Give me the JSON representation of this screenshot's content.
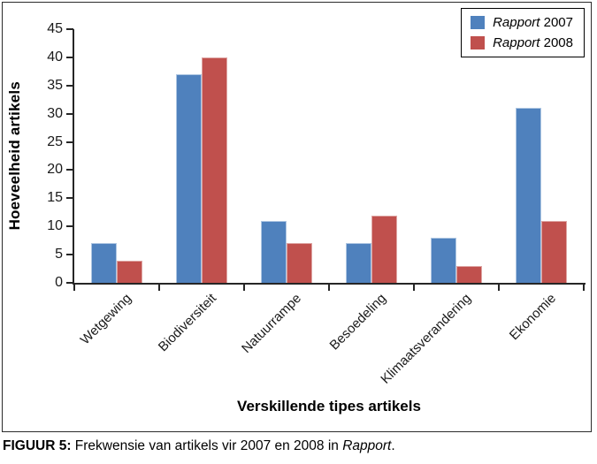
{
  "chart_data": {
    "type": "bar",
    "categories": [
      "Wetgewing",
      "Biodiversiteit",
      "Natuurrampe",
      "Besoedeling",
      "Klimaatsverandering",
      "Ekonomie"
    ],
    "series": [
      {
        "name": "Rapport 2007",
        "name_parts": [
          {
            "text": "Rapport",
            "italic": true
          },
          {
            "text": " 2007",
            "italic": false
          }
        ],
        "color": "#4F81BD",
        "values": [
          7,
          37,
          11,
          7,
          8,
          31
        ]
      },
      {
        "name": "Rapport 2008",
        "name_parts": [
          {
            "text": "Rapport",
            "italic": true
          },
          {
            "text": " 2008",
            "italic": false
          }
        ],
        "color": "#C0504D",
        "values": [
          4,
          40,
          7,
          12,
          3,
          11
        ]
      }
    ],
    "title": "",
    "xlabel": "Verskillende tipes artikels",
    "ylabel": "Hoeveelheid artikels",
    "ylim": [
      0,
      45
    ],
    "ytick_step": 5,
    "yticks": [
      0,
      5,
      10,
      15,
      20,
      25,
      30,
      35,
      40,
      45
    ],
    "grid": false,
    "legend_position": "top-right"
  },
  "caption": {
    "parts": [
      {
        "text": "FIGUUR 5:",
        "bold": true
      },
      {
        "text": " Frekwensie van artikels vir 2007 en 2008 in "
      },
      {
        "text": "Rapport",
        "italic": true
      },
      {
        "text": "."
      }
    ]
  }
}
